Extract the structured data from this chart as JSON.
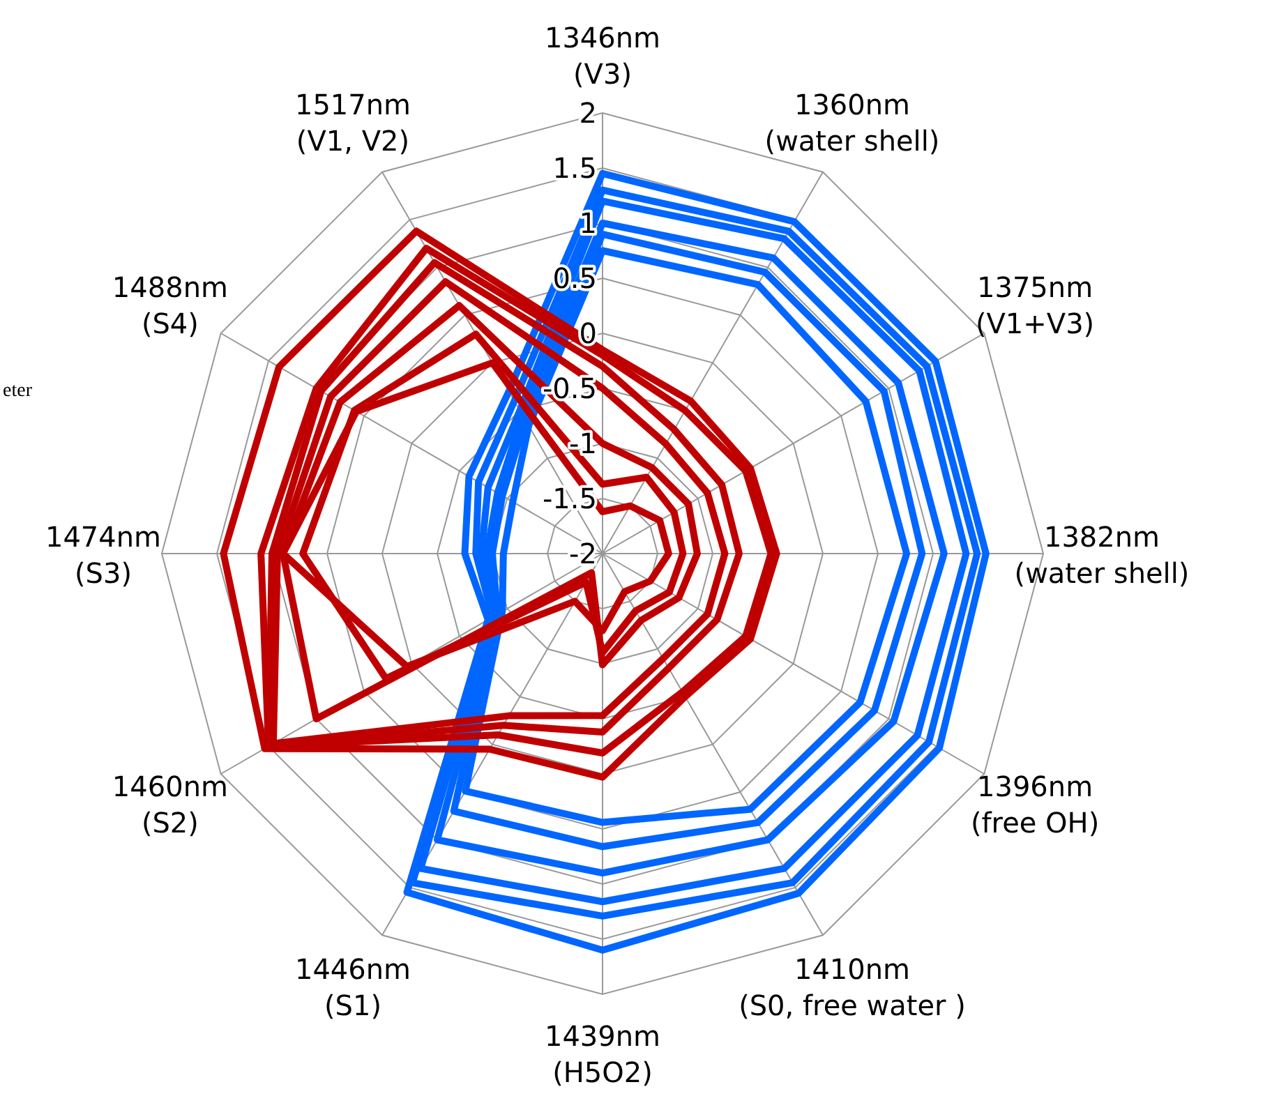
{
  "chart_data": {
    "type": "radar",
    "categories": [
      "1346nm\n(V3)",
      "1360nm\n(water shell)",
      "1375nm\n(V1+V3)",
      "1382nm\n(water shell)",
      "1396nm\n(free OH)",
      "1410nm\n(S0, free water )",
      "1439nm\n(H5O2)",
      "1446nm\n(S1)",
      "1460nm\n(S2)",
      "1474nm\n(S3)",
      "1488nm\n(S4)",
      "1517nm\n(V1, V2)"
    ],
    "ylim": [
      -2,
      2
    ],
    "yticks": [
      -2,
      -1.5,
      -1,
      -0.5,
      0,
      0.5,
      1,
      1.5,
      2
    ],
    "grid": true,
    "series": [
      {
        "color": "#0066ff",
        "values": [
          1.45,
          1.48,
          1.49,
          1.48,
          1.53,
          1.56,
          1.6,
          1.55,
          -0.8,
          -0.75,
          -0.6,
          -0.3
        ]
      },
      {
        "color": "#0066ff",
        "values": [
          1.3,
          1.38,
          1.4,
          1.4,
          1.42,
          1.45,
          1.29,
          1.45,
          -0.85,
          -0.85,
          -0.7,
          -0.4
        ]
      },
      {
        "color": "#0066ff",
        "values": [
          1.2,
          1.3,
          1.32,
          1.3,
          1.3,
          1.3,
          1.16,
          1.3,
          -0.85,
          -0.9,
          -0.8,
          -0.5
        ]
      },
      {
        "color": "#0066ff",
        "values": [
          1.0,
          1.1,
          1.1,
          1.1,
          1.05,
          1.0,
          0.9,
          1.0,
          -0.9,
          -0.95,
          -0.9,
          -0.55
        ]
      },
      {
        "color": "#0066ff",
        "values": [
          0.9,
          0.95,
          0.95,
          0.9,
          0.85,
          0.82,
          0.66,
          0.7,
          -0.9,
          -1.0,
          -0.95,
          -0.6
        ]
      },
      {
        "color": "#0066ff",
        "values": [
          0.75,
          0.82,
          0.76,
          0.76,
          0.7,
          0.68,
          0.44,
          0.49,
          -0.95,
          -1.1,
          -1.06,
          -0.66
        ]
      },
      {
        "color": "#c00000",
        "values": [
          -0.15,
          -0.4,
          -0.45,
          -0.42,
          -0.45,
          -0.5,
          0.03,
          0.05,
          1.54,
          1.44,
          1.39,
          1.38
        ]
      },
      {
        "color": "#c00000",
        "values": [
          -0.2,
          -0.5,
          -0.5,
          -0.47,
          -0.5,
          -0.55,
          -0.19,
          -0.1,
          1.5,
          1.1,
          1.0,
          1.2
        ]
      },
      {
        "color": "#c00000",
        "values": [
          -0.3,
          -0.7,
          -0.75,
          -0.76,
          -0.8,
          -0.8,
          -0.38,
          -0.2,
          1.5,
          1.0,
          0.95,
          1.05
        ]
      },
      {
        "color": "#c00000",
        "values": [
          -0.5,
          -0.85,
          -0.9,
          -0.89,
          -0.9,
          -0.9,
          -0.53,
          -0.3,
          1.45,
          0.95,
          0.85,
          0.85
        ]
      },
      {
        "color": "#c00000",
        "values": [
          -1.0,
          -1.1,
          -1.1,
          -1.14,
          -1.2,
          -1.3,
          -0.99,
          -1.8,
          1.0,
          0.9,
          0.75,
          0.6
        ]
      },
      {
        "color": "#c00000",
        "values": [
          -1.37,
          -1.2,
          -1.25,
          -1.27,
          -1.3,
          -1.4,
          -1.1,
          -1.7,
          0.27,
          0.72,
          0.6,
          0.3
        ]
      },
      {
        "color": "#c00000",
        "values": [
          -1.62,
          -1.5,
          -1.4,
          -1.4,
          -1.5,
          -1.6,
          -1.3,
          -1.5,
          0.05,
          0.9,
          0.58,
          0.0
        ]
      }
    ],
    "annotations": [
      "eter"
    ]
  }
}
